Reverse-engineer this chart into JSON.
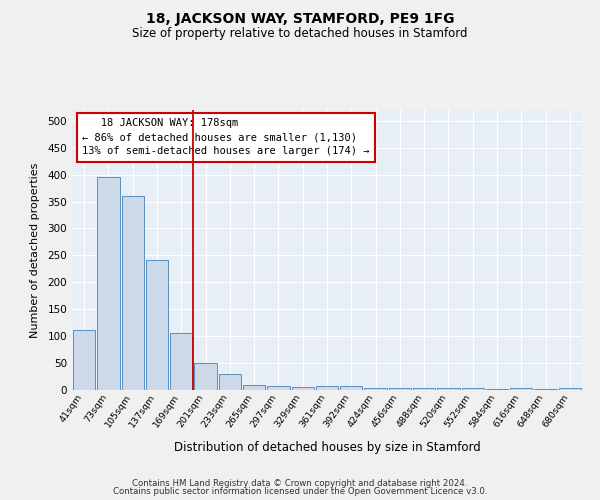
{
  "title": "18, JACKSON WAY, STAMFORD, PE9 1FG",
  "subtitle": "Size of property relative to detached houses in Stamford",
  "xlabel": "Distribution of detached houses by size in Stamford",
  "ylabel": "Number of detached properties",
  "footnote1": "Contains HM Land Registry data © Crown copyright and database right 2024.",
  "footnote2": "Contains public sector information licensed under the Open Government Licence v3.0.",
  "categories": [
    "41sqm",
    "73sqm",
    "105sqm",
    "137sqm",
    "169sqm",
    "201sqm",
    "233sqm",
    "265sqm",
    "297sqm",
    "329sqm",
    "361sqm",
    "392sqm",
    "424sqm",
    "456sqm",
    "488sqm",
    "520sqm",
    "552sqm",
    "584sqm",
    "616sqm",
    "648sqm",
    "680sqm"
  ],
  "values": [
    112,
    395,
    360,
    242,
    105,
    50,
    30,
    10,
    7,
    5,
    7,
    7,
    3,
    3,
    4,
    3,
    3,
    2,
    4,
    2,
    4
  ],
  "bar_color": "#ccd9e8",
  "bar_edge_color": "#5a8fbf",
  "bg_color": "#e8eef5",
  "grid_color": "#ffffff",
  "annotation_line1": "   18 JACKSON WAY: 178sqm",
  "annotation_line2": "← 86% of detached houses are smaller (1,130)",
  "annotation_line3": "13% of semi-detached houses are larger (174) →",
  "annotation_box_color": "#ffffff",
  "annotation_box_edge": "#cc0000",
  "red_line_x": 4.5,
  "ylim": [
    0,
    520
  ],
  "yticks": [
    0,
    50,
    100,
    150,
    200,
    250,
    300,
    350,
    400,
    450,
    500
  ],
  "title_fontsize": 10,
  "subtitle_fontsize": 8.5
}
